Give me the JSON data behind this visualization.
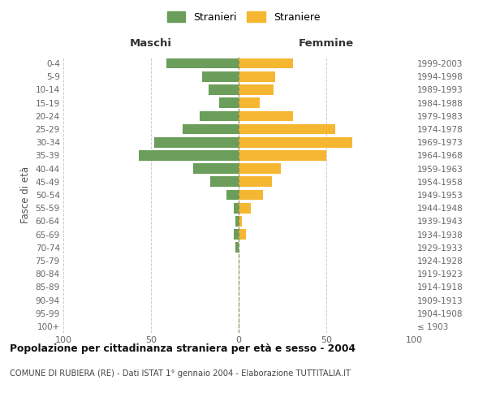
{
  "age_groups": [
    "100+",
    "95-99",
    "90-94",
    "85-89",
    "80-84",
    "75-79",
    "70-74",
    "65-69",
    "60-64",
    "55-59",
    "50-54",
    "45-49",
    "40-44",
    "35-39",
    "30-34",
    "25-29",
    "20-24",
    "15-19",
    "10-14",
    "5-9",
    "0-4"
  ],
  "birth_years": [
    "≤ 1903",
    "1904-1908",
    "1909-1913",
    "1914-1918",
    "1919-1923",
    "1924-1928",
    "1929-1933",
    "1934-1938",
    "1939-1943",
    "1944-1948",
    "1949-1953",
    "1954-1958",
    "1959-1963",
    "1964-1968",
    "1969-1973",
    "1974-1978",
    "1979-1983",
    "1984-1988",
    "1989-1993",
    "1994-1998",
    "1999-2003"
  ],
  "maschi": [
    0,
    0,
    0,
    0,
    0,
    0,
    2,
    3,
    2,
    3,
    7,
    16,
    26,
    57,
    48,
    32,
    22,
    11,
    17,
    21,
    41
  ],
  "femmine": [
    0,
    0,
    0,
    0,
    0,
    0,
    0,
    4,
    2,
    7,
    14,
    19,
    24,
    50,
    65,
    55,
    31,
    12,
    20,
    21,
    31
  ],
  "male_color": "#6a9e5a",
  "female_color": "#f5b731",
  "grid_color": "#cccccc",
  "centerline_color": "#888855",
  "xlim": 100,
  "xticks": [
    -100,
    -50,
    0,
    50,
    100
  ],
  "xtick_labels": [
    "100",
    "50",
    "0",
    "50",
    "100"
  ],
  "title": "Popolazione per cittadinanza straniera per età e sesso - 2004",
  "subtitle": "COMUNE DI RUBIERA (RE) - Dati ISTAT 1° gennaio 2004 - Elaborazione TUTTITALIA.IT",
  "ylabel_left": "Fasce di età",
  "header_left": "Maschi",
  "header_right": "Femmine",
  "legend_male": "Stranieri",
  "legend_female": "Straniere"
}
